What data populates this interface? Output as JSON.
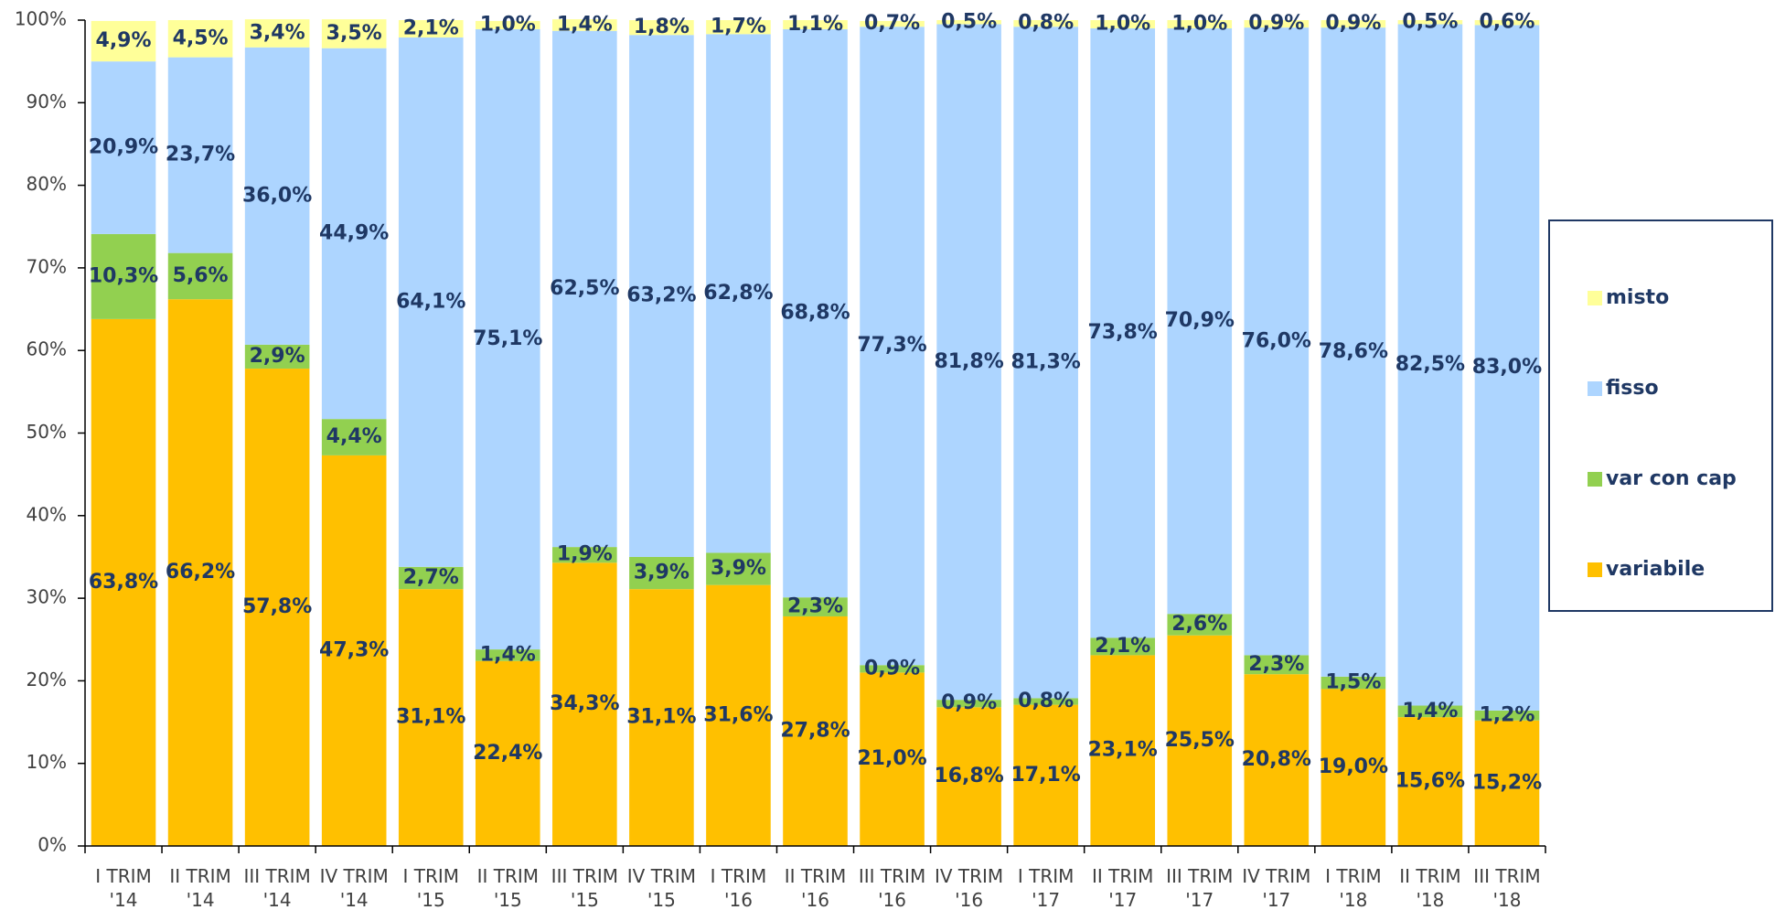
{
  "chart_data": {
    "type": "stacked_bar",
    "categories": [
      "I TRIM '14",
      "II TRIM '14",
      "III TRIM '14",
      "IV TRIM '14",
      "I TRIM '15",
      "II TRIM '15",
      "III TRIM '15",
      "IV TRIM '15",
      "I TRIM '16",
      "II TRIM '16",
      "III TRIM '16",
      "IV TRIM '16",
      "I TRIM '17",
      "II TRIM '17",
      "III TRIM '17",
      "IV TRIM '17",
      "I TRIM '18",
      "II TRIM '18",
      "III TRIM '18"
    ],
    "series": [
      {
        "name": "variabile",
        "color": "#FFC000",
        "values": [
          63.8,
          66.2,
          57.8,
          47.3,
          31.1,
          22.4,
          34.3,
          31.1,
          31.6,
          27.8,
          21.0,
          16.8,
          17.1,
          23.1,
          25.5,
          20.8,
          19.0,
          15.6,
          15.2
        ],
        "value_labels": [
          "63,8%",
          "66,2%",
          "57,8%",
          "47,3%",
          "31,1%",
          "22,4%",
          "34,3%",
          "31,1%",
          "31,6%",
          "27,8%",
          "21,0%",
          "16,8%",
          "17,1%",
          "23,1%",
          "25,5%",
          "20,8%",
          "19,0%",
          "15,6%",
          "15,2%"
        ]
      },
      {
        "name": "var con cap",
        "color": "#92D050",
        "values": [
          10.3,
          5.6,
          2.9,
          4.4,
          2.7,
          1.4,
          1.9,
          3.9,
          3.9,
          2.3,
          0.9,
          0.9,
          0.8,
          2.1,
          2.6,
          2.3,
          1.5,
          1.4,
          1.2
        ],
        "value_labels": [
          "10,3%",
          "5,6%",
          "2,9%",
          "4,4%",
          "2,7%",
          "1,4%",
          "1,9%",
          "3,9%",
          "3,9%",
          "2,3%",
          "0,9%",
          "0,9%",
          "0,8%",
          "2,1%",
          "2,6%",
          "2,3%",
          "1,5%",
          "1,4%",
          "1,2%"
        ]
      },
      {
        "name": "fisso",
        "color": "#ADD5FF",
        "values": [
          20.9,
          23.7,
          36.0,
          44.9,
          64.1,
          75.1,
          62.5,
          63.2,
          62.8,
          68.8,
          77.3,
          81.8,
          81.3,
          73.8,
          70.9,
          76.0,
          78.6,
          82.5,
          83.0
        ],
        "value_labels": [
          "20,9%",
          "23,7%",
          "36,0%",
          "44,9%",
          "64,1%",
          "75,1%",
          "62,5%",
          "63,2%",
          "62,8%",
          "68,8%",
          "77,3%",
          "81,8%",
          "81,3%",
          "73,8%",
          "70,9%",
          "76,0%",
          "78,6%",
          "82,5%",
          "83,0%"
        ]
      },
      {
        "name": "misto",
        "color": "#FFFF99",
        "values": [
          4.9,
          4.5,
          3.4,
          3.5,
          2.1,
          1.0,
          1.4,
          1.8,
          1.7,
          1.1,
          0.7,
          0.5,
          0.8,
          1.0,
          1.0,
          0.9,
          0.9,
          0.5,
          0.6
        ],
        "value_labels": [
          "4,9%",
          "4,5%",
          "3,4%",
          "3,5%",
          "2,1%",
          "1,0%",
          "1,4%",
          "1,8%",
          "1,7%",
          "1,1%",
          "0,7%",
          "0,5%",
          "0,8%",
          "1,0%",
          "1,0%",
          "0,9%",
          "0,9%",
          "0,5%",
          "0,6%"
        ]
      }
    ],
    "ylim": [
      0,
      100
    ],
    "yticks": [
      {
        "value": 0,
        "label": "0%"
      },
      {
        "value": 10,
        "label": "10%"
      },
      {
        "value": 20,
        "label": "20%"
      },
      {
        "value": 30,
        "label": "30%"
      },
      {
        "value": 40,
        "label": "40%"
      },
      {
        "value": 50,
        "label": "50%"
      },
      {
        "value": 60,
        "label": "60%"
      },
      {
        "value": 70,
        "label": "70%"
      },
      {
        "value": 80,
        "label": "80%"
      },
      {
        "value": 90,
        "label": "90%"
      },
      {
        "value": 100,
        "label": "100%"
      }
    ],
    "legend": "right"
  }
}
